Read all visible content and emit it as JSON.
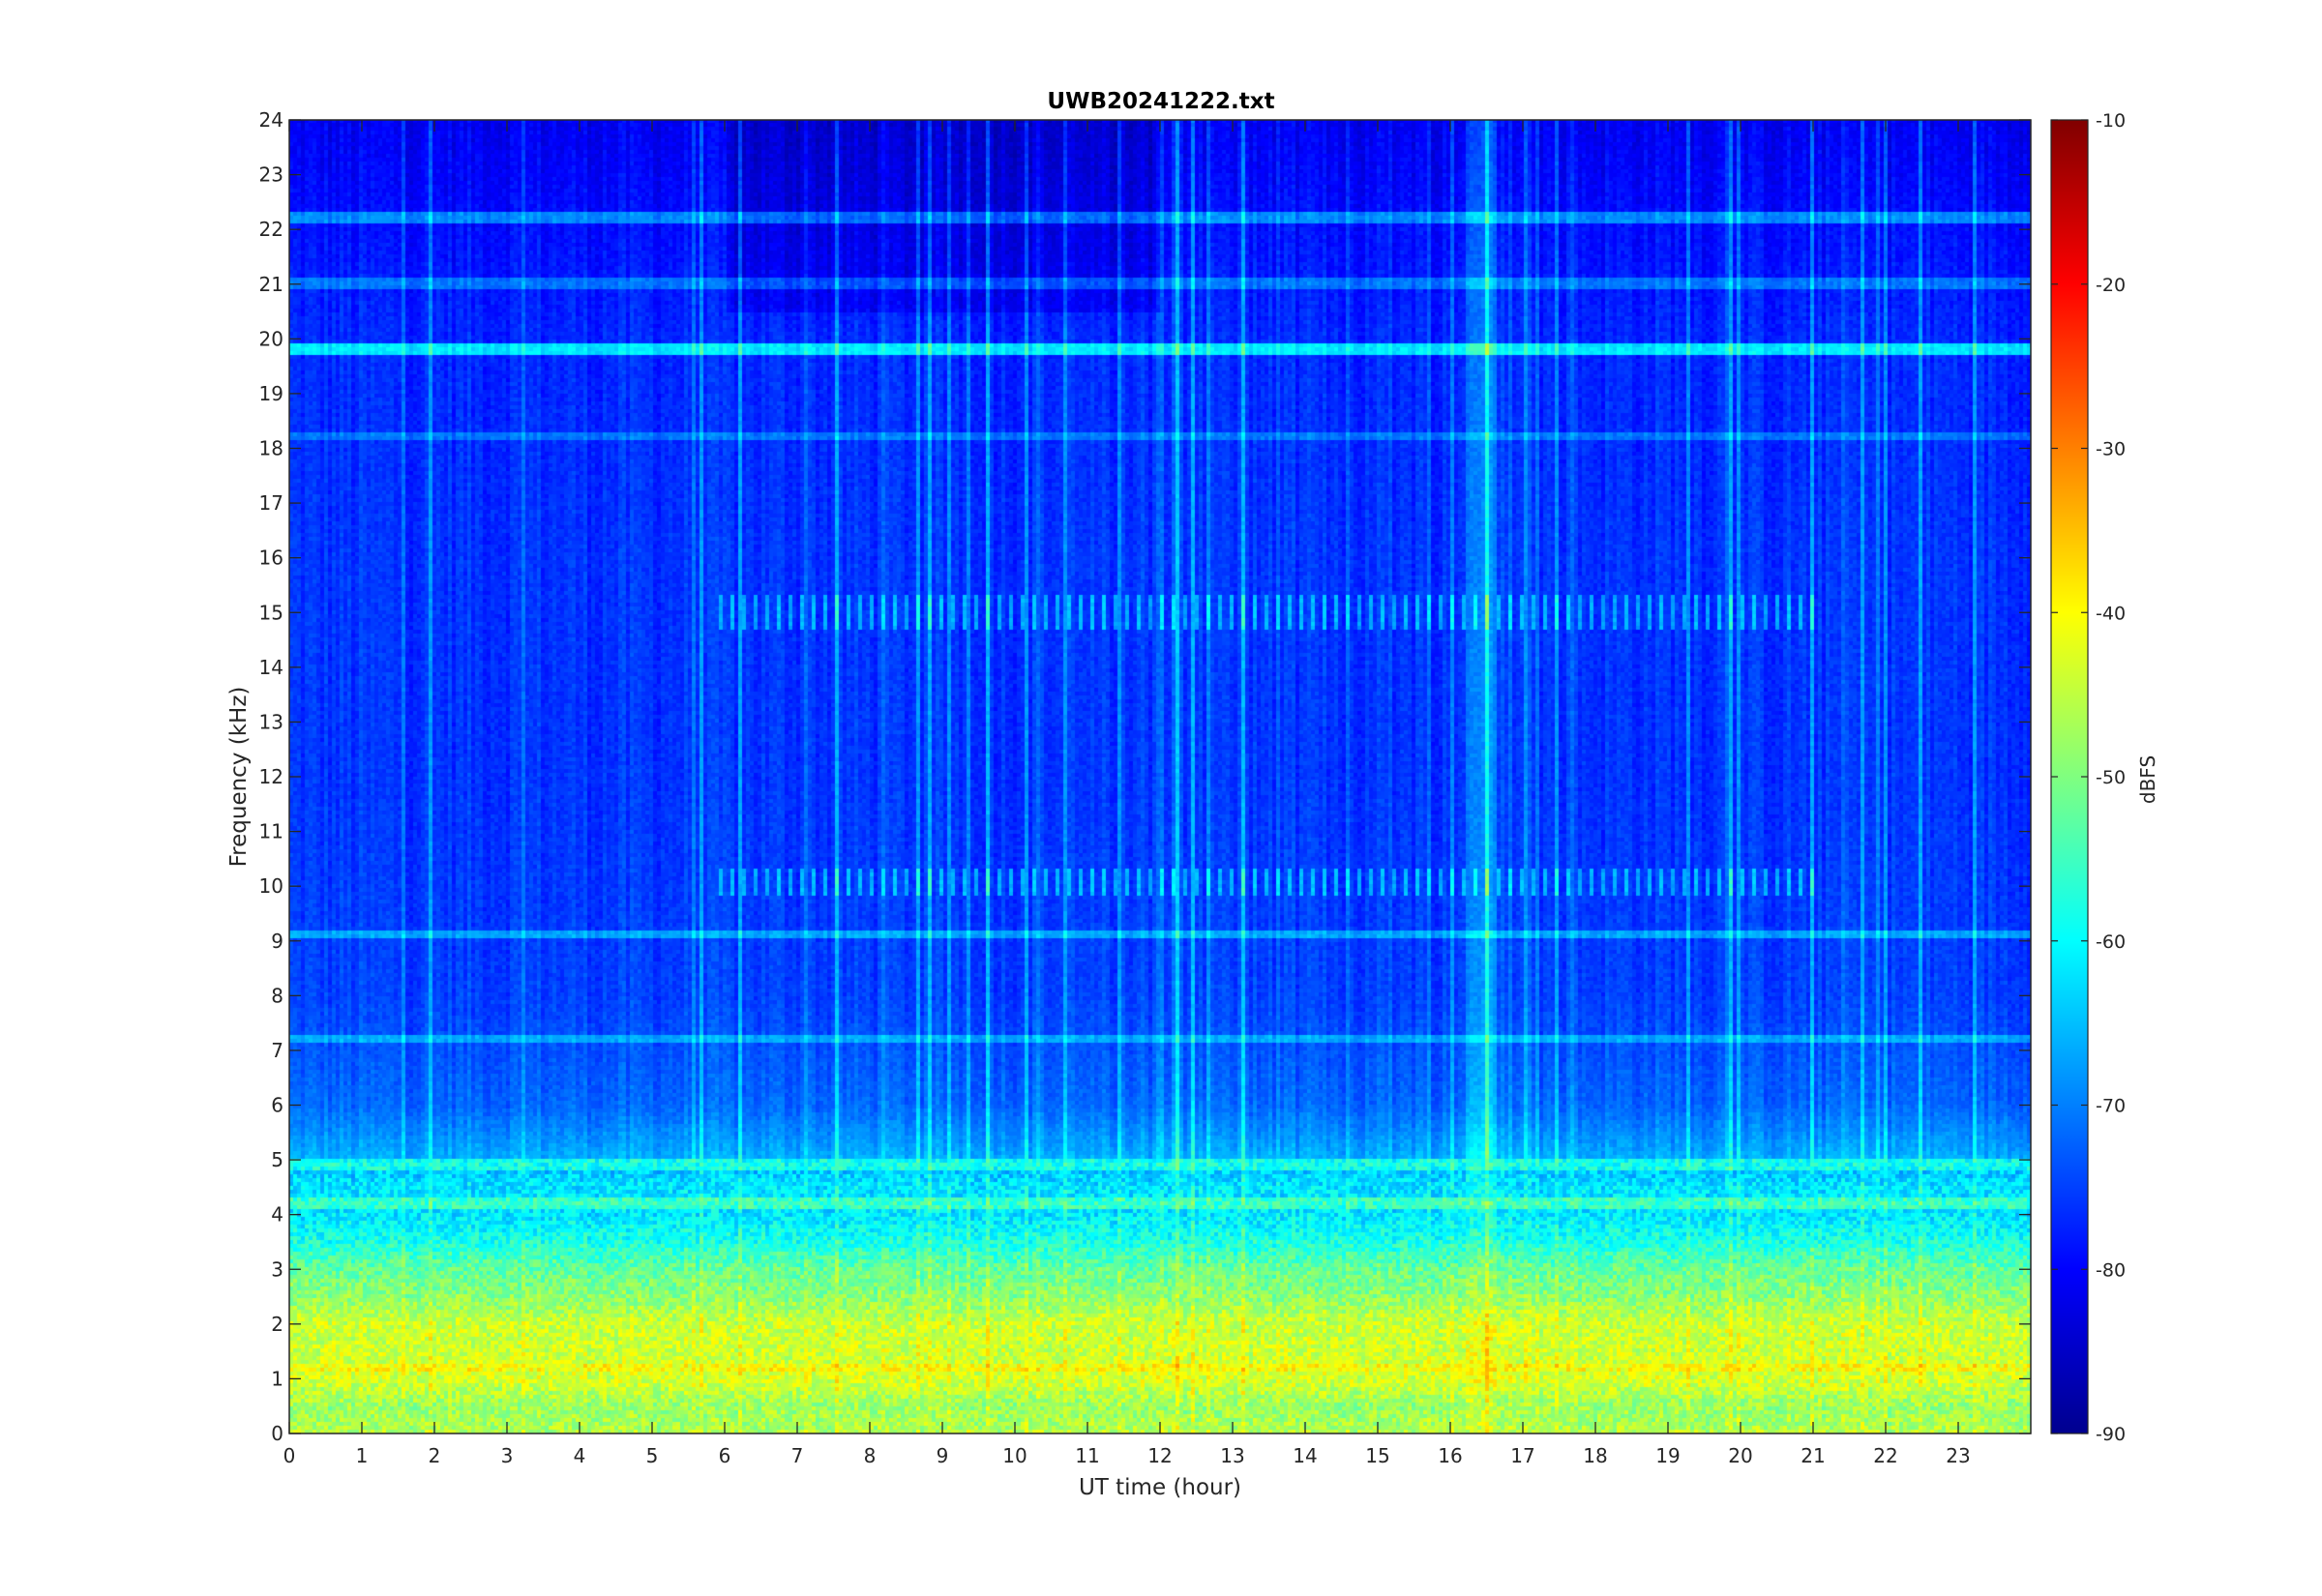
{
  "chart_data": {
    "type": "heatmap",
    "title": "UWB20241222.txt",
    "xlabel": "UT time (hour)",
    "ylabel": "Frequency (kHz)",
    "colorbar_label": "dBFS",
    "colormap": "jet",
    "xlim": [
      0,
      24
    ],
    "ylim": [
      0,
      24
    ],
    "clim": [
      -90,
      -10
    ],
    "x_ticks": [
      "0",
      "1",
      "2",
      "3",
      "4",
      "5",
      "6",
      "7",
      "8",
      "9",
      "10",
      "11",
      "12",
      "13",
      "14",
      "15",
      "16",
      "17",
      "18",
      "19",
      "20",
      "21",
      "22",
      "23"
    ],
    "y_ticks": [
      "0",
      "1",
      "2",
      "3",
      "4",
      "5",
      "6",
      "7",
      "8",
      "9",
      "10",
      "11",
      "12",
      "13",
      "14",
      "15",
      "16",
      "17",
      "18",
      "19",
      "20",
      "21",
      "22",
      "23",
      "24"
    ],
    "colorbar_ticks": [
      "-90",
      "-80",
      "-70",
      "-60",
      "-50",
      "-40",
      "-30",
      "-20",
      "-10"
    ],
    "frequency_profile_dbfs": [
      {
        "freq_khz": 0.0,
        "level": -46
      },
      {
        "freq_khz": 0.5,
        "level": -48
      },
      {
        "freq_khz": 1.0,
        "level": -43
      },
      {
        "freq_khz": 1.5,
        "level": -44
      },
      {
        "freq_khz": 2.0,
        "level": -44
      },
      {
        "freq_khz": 2.5,
        "level": -49
      },
      {
        "freq_khz": 3.0,
        "level": -52
      },
      {
        "freq_khz": 3.5,
        "level": -58
      },
      {
        "freq_khz": 4.0,
        "level": -62
      },
      {
        "freq_khz": 4.5,
        "level": -62
      },
      {
        "freq_khz": 5.0,
        "level": -66
      },
      {
        "freq_khz": 6.0,
        "level": -72
      },
      {
        "freq_khz": 8.0,
        "level": -75
      },
      {
        "freq_khz": 12.0,
        "level": -76
      },
      {
        "freq_khz": 16.0,
        "level": -76
      },
      {
        "freq_khz": 20.0,
        "level": -77
      },
      {
        "freq_khz": 24.0,
        "level": -81
      }
    ],
    "horizontal_lines": [
      {
        "freq_khz": 19.8,
        "level": -60
      },
      {
        "freq_khz": 22.2,
        "level": -68
      },
      {
        "freq_khz": 21.0,
        "level": -70
      },
      {
        "freq_khz": 18.2,
        "level": -70
      },
      {
        "freq_khz": 9.1,
        "level": -66
      },
      {
        "freq_khz": 7.2,
        "level": -66
      },
      {
        "freq_khz": 4.9,
        "level": -58
      },
      {
        "freq_khz": 4.2,
        "level": -55
      },
      {
        "freq_khz": 1.2,
        "level": -40
      }
    ]
  }
}
